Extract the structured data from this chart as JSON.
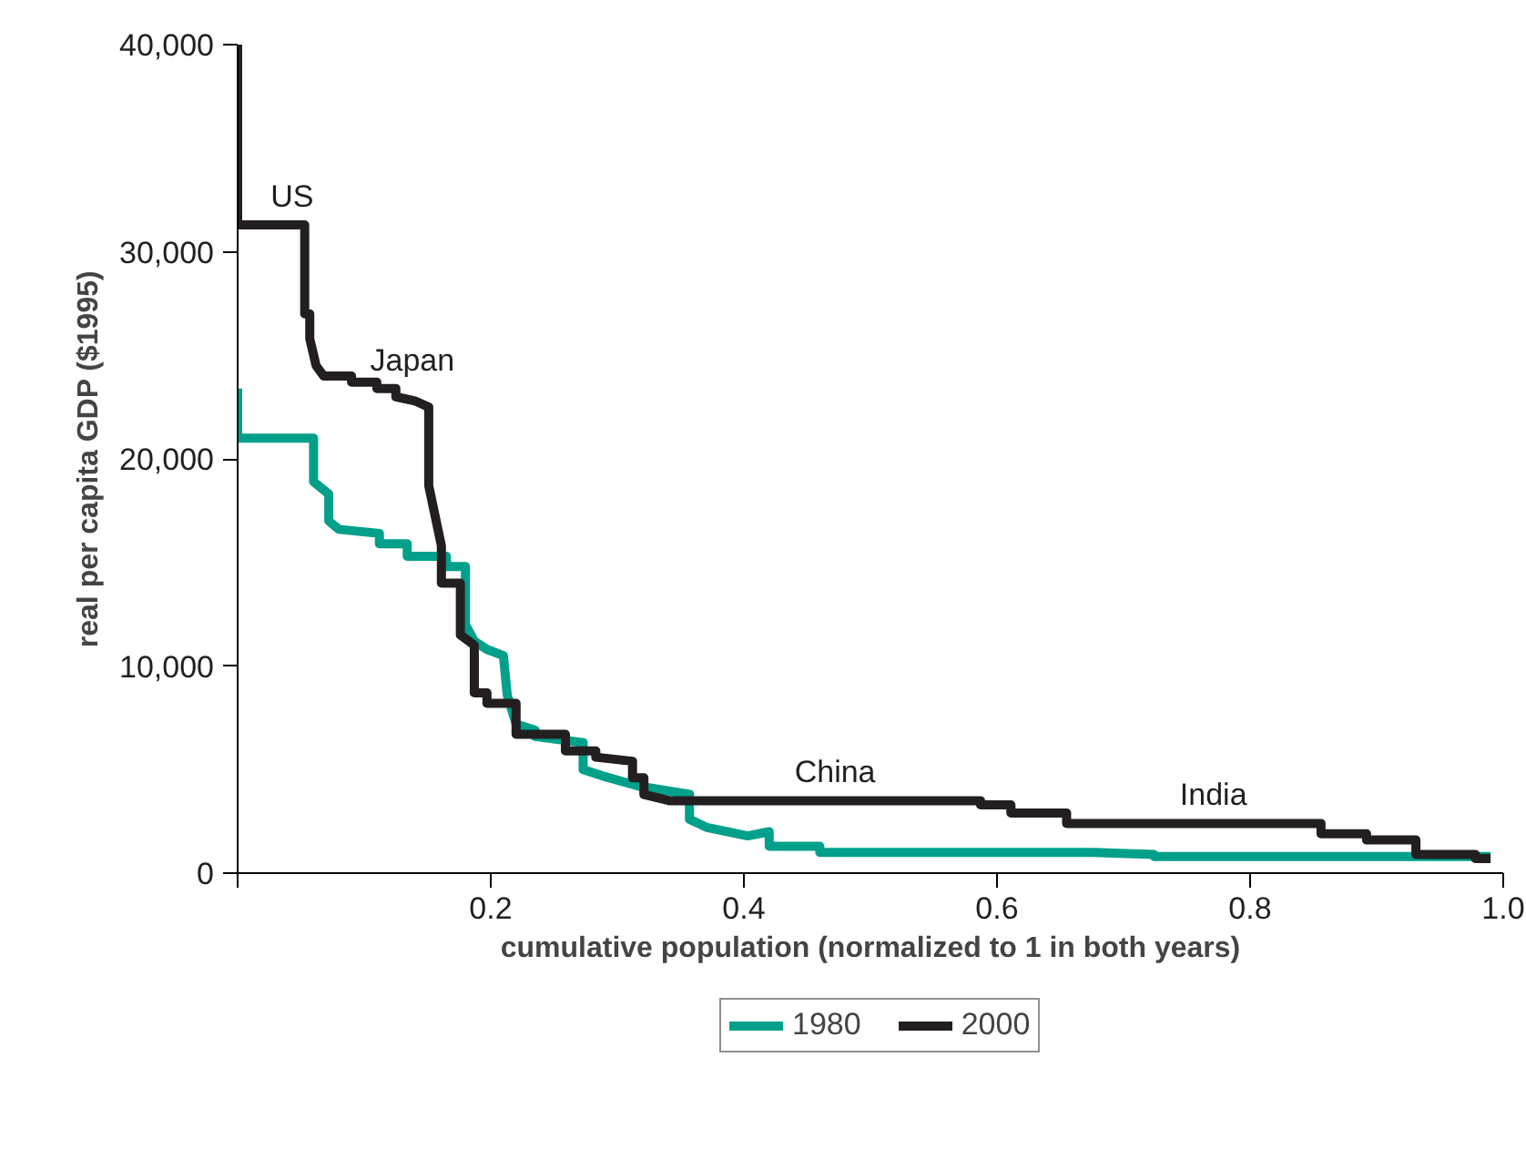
{
  "chart_data": {
    "type": "line",
    "xlabel": "cumulative population (normalized to 1 in both years)",
    "ylabel": "real per capita GDP ($1995)",
    "xlim": [
      0,
      1
    ],
    "ylim": [
      0,
      40000
    ],
    "xticks": [
      {
        "value": 0,
        "label": null
      },
      0.2,
      0.4,
      0.6,
      0.8,
      {
        "value": 1,
        "label": "1.0"
      }
    ],
    "yticks": [
      {
        "value": 0,
        "label": "0"
      },
      {
        "value": 10000,
        "label": "10,000"
      },
      {
        "value": 20000,
        "label": "20,000"
      },
      {
        "value": 30000,
        "label": "30,000"
      },
      {
        "value": 40000,
        "label": "40,000"
      }
    ],
    "grid": false,
    "legend": "bottom",
    "marker": "none",
    "line_style": "solid",
    "annotations": [
      {
        "text": "US",
        "x": 0.043,
        "y": 31300
      },
      {
        "text": "Japan",
        "x": 0.138,
        "y": 23400
      },
      {
        "text": "China",
        "x": 0.472,
        "y": 3500
      },
      {
        "text": "India",
        "x": 0.771,
        "y": 2400
      }
    ],
    "series": [
      {
        "name": "1980",
        "color": "#00a08a",
        "x": [
          0,
          0,
          0.06,
          0.06,
          0.072,
          0.072,
          0.08,
          0.112,
          0.112,
          0.134,
          0.134,
          0.165,
          0.165,
          0.18,
          0.18,
          0.187,
          0.187,
          0.197,
          0.21,
          0.213,
          0.22,
          0.235,
          0.235,
          0.273,
          0.273,
          0.288,
          0.317,
          0.357,
          0.357,
          0.371,
          0.403,
          0.42,
          0.42,
          0.46,
          0.46,
          0.676,
          0.724,
          0.724,
          0.99
        ],
        "values": [
          23400,
          21000,
          21000,
          18900,
          18300,
          17000,
          16600,
          16400,
          15900,
          15900,
          15300,
          15300,
          14800,
          14800,
          12000,
          11200,
          11200,
          10800,
          10500,
          8600,
          7200,
          6900,
          6600,
          6300,
          5000,
          4700,
          4200,
          3800,
          2600,
          2200,
          1800,
          2000,
          1300,
          1300,
          1000,
          1000,
          900,
          800,
          800
        ]
      },
      {
        "name": "2000",
        "color": "#231f20",
        "x": [
          0,
          0,
          0.053,
          0.053,
          0.057,
          0.057,
          0.062,
          0.068,
          0.09,
          0.09,
          0.11,
          0.11,
          0.125,
          0.125,
          0.14,
          0.151,
          0.151,
          0.161,
          0.161,
          0.176,
          0.176,
          0.187,
          0.187,
          0.197,
          0.197,
          0.22,
          0.22,
          0.259,
          0.259,
          0.283,
          0.283,
          0.312,
          0.312,
          0.321,
          0.321,
          0.341,
          0.587,
          0.587,
          0.611,
          0.611,
          0.655,
          0.655,
          0.856,
          0.856,
          0.892,
          0.892,
          0.931,
          0.931,
          0.978,
          0.978,
          0.99
        ],
        "values": [
          40000,
          31300,
          31300,
          27000,
          27000,
          25800,
          24500,
          24000,
          24000,
          23700,
          23700,
          23400,
          23400,
          23000,
          22800,
          22500,
          18700,
          15800,
          14000,
          14000,
          11500,
          11000,
          8700,
          8700,
          8200,
          8200,
          6700,
          6700,
          5900,
          5900,
          5600,
          5400,
          4600,
          4600,
          3800,
          3500,
          3500,
          3300,
          3300,
          2900,
          2900,
          2400,
          2400,
          1900,
          1900,
          1600,
          1600,
          900,
          900,
          700,
          700
        ]
      }
    ]
  }
}
